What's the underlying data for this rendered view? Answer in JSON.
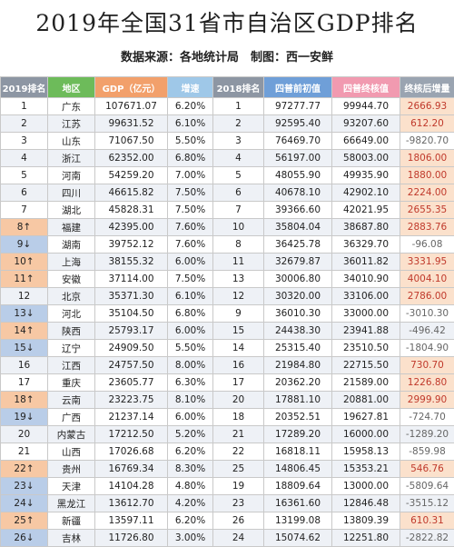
{
  "header": {
    "title": "2019年全国31省市自治区GDP排名",
    "subtitle": "数据来源：各地统计局　制图：西一安鲜"
  },
  "table": {
    "columns": [
      "2019排名",
      "地区",
      "GDP（亿元）",
      "增速",
      "2018排名",
      "四普前初值",
      "四普终核值",
      "终核后增量"
    ],
    "rows": [
      [
        "1",
        "广东",
        "107671.07",
        "6.20%",
        "1",
        "97277.77",
        "99944.70",
        "2666.93"
      ],
      [
        "2",
        "江苏",
        "99631.52",
        "6.10%",
        "2",
        "92595.40",
        "93207.60",
        "612.20"
      ],
      [
        "3",
        "山东",
        "71067.50",
        "5.50%",
        "3",
        "76469.70",
        "66649.00",
        "-9820.70"
      ],
      [
        "4",
        "浙江",
        "62352.00",
        "6.80%",
        "4",
        "56197.00",
        "58003.00",
        "1806.00"
      ],
      [
        "5",
        "河南",
        "54259.20",
        "7.00%",
        "5",
        "48055.90",
        "49935.90",
        "1880.00"
      ],
      [
        "6",
        "四川",
        "46615.82",
        "7.50%",
        "6",
        "40678.10",
        "42902.10",
        "2224.00"
      ],
      [
        "7",
        "湖北",
        "45828.31",
        "7.50%",
        "7",
        "39366.60",
        "42021.95",
        "2655.35"
      ],
      [
        "8↑",
        "福建",
        "42395.00",
        "7.60%",
        "10",
        "35804.04",
        "38687.80",
        "2883.76"
      ],
      [
        "9↓",
        "湖南",
        "39752.12",
        "7.60%",
        "8",
        "36425.78",
        "36329.70",
        "-96.08"
      ],
      [
        "10↑",
        "上海",
        "38155.32",
        "6.00%",
        "11",
        "32679.87",
        "36011.82",
        "3331.95"
      ],
      [
        "11↑",
        "安徽",
        "37114.00",
        "7.50%",
        "13",
        "30006.80",
        "34010.90",
        "4004.10"
      ],
      [
        "12",
        "北京",
        "35371.30",
        "6.10%",
        "12",
        "30320.00",
        "33106.00",
        "2786.00"
      ],
      [
        "13↓",
        "河北",
        "35104.50",
        "6.80%",
        "9",
        "36010.30",
        "33000.00",
        "-3010.30"
      ],
      [
        "14↑",
        "陕西",
        "25793.17",
        "6.00%",
        "15",
        "24438.30",
        "23941.88",
        "-496.42"
      ],
      [
        "15↓",
        "辽宁",
        "24909.50",
        "5.50%",
        "14",
        "25315.40",
        "23510.50",
        "-1804.90"
      ],
      [
        "16",
        "江西",
        "24757.50",
        "8.00%",
        "16",
        "21984.80",
        "22715.50",
        "730.70"
      ],
      [
        "17",
        "重庆",
        "23605.77",
        "6.30%",
        "17",
        "20362.20",
        "21589.00",
        "1226.80"
      ],
      [
        "18↑",
        "云南",
        "23223.75",
        "8.10%",
        "20",
        "17881.10",
        "20881.00",
        "2999.90"
      ],
      [
        "19↓",
        "广西",
        "21237.14",
        "6.00%",
        "18",
        "20352.51",
        "19627.81",
        "-724.70"
      ],
      [
        "20",
        "内蒙古",
        "17212.50",
        "5.20%",
        "21",
        "17289.20",
        "16000.00",
        "-1289.20"
      ],
      [
        "21",
        "山西",
        "17026.68",
        "6.20%",
        "22",
        "16818.11",
        "15958.13",
        "-859.98"
      ],
      [
        "22↑",
        "贵州",
        "16769.34",
        "8.30%",
        "25",
        "14806.45",
        "15353.21",
        "546.76"
      ],
      [
        "23↓",
        "天津",
        "14104.28",
        "4.80%",
        "19",
        "18809.64",
        "13000.00",
        "-5809.64"
      ],
      [
        "24↓",
        "黑龙江",
        "13612.70",
        "4.20%",
        "23",
        "16361.60",
        "12846.48",
        "-3515.12"
      ],
      [
        "25↑",
        "新疆",
        "13597.11",
        "6.20%",
        "26",
        "13199.08",
        "13809.39",
        "610.31"
      ],
      [
        "26↓",
        "吉林",
        "11726.80",
        "3.00%",
        "24",
        "15074.62",
        "12251.80",
        "-2822.82"
      ]
    ]
  }
}
